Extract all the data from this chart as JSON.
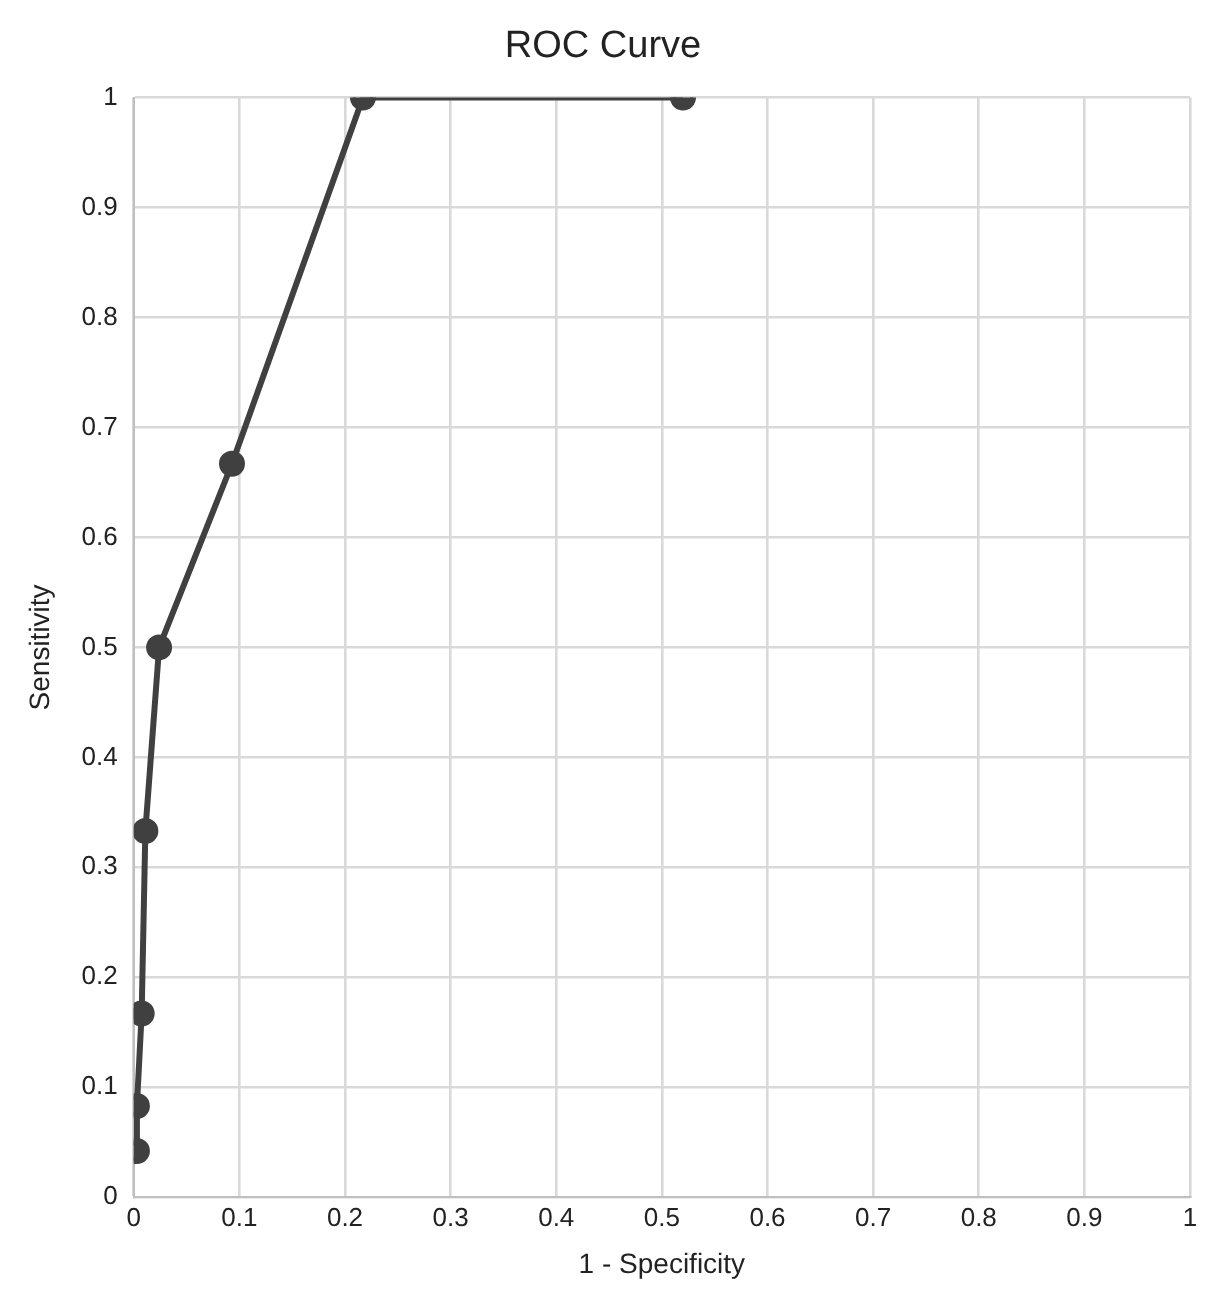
{
  "chart_data": {
    "type": "scatter",
    "title": "ROC Curve",
    "xlabel": "1 - Specificity",
    "ylabel": "Sensitivity",
    "xlim": [
      0,
      1
    ],
    "xticks": [
      0,
      0.1,
      0.2,
      0.3,
      0.4,
      0.5,
      0.6,
      0.7,
      0.8,
      0.9,
      1
    ],
    "ylim": [
      0,
      1
    ],
    "yticks": [
      0,
      0.1,
      0.2,
      0.3,
      0.4,
      0.5,
      0.6,
      0.7,
      0.8,
      0.9,
      1
    ],
    "grid": true,
    "legend": false,
    "marker": "circle",
    "line_style": "solid",
    "series": [
      {
        "type": "line",
        "color": "#404040",
        "x": [
          0.003,
          0.003,
          0.0075,
          0.011,
          0.024,
          0.093,
          0.217,
          0.52
        ],
        "values": [
          0.042,
          0.083,
          0.167,
          0.333,
          0.5,
          0.667,
          1,
          1
        ]
      }
    ]
  }
}
